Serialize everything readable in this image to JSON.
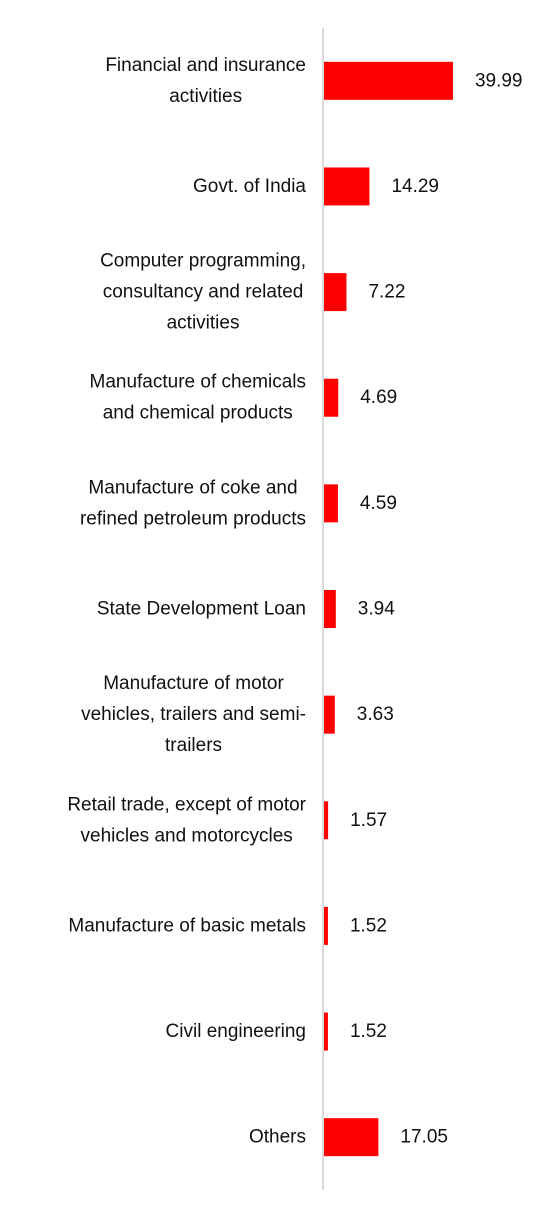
{
  "chart_data": {
    "type": "bar",
    "orientation": "horizontal",
    "title": "",
    "xlabel": "",
    "ylabel": "",
    "categories": [
      [
        "Financial and insurance",
        "activities"
      ],
      [
        "Govt. of India"
      ],
      [
        "Computer programming,",
        "consultancy and related",
        "activities"
      ],
      [
        "Manufacture of chemicals",
        "and chemical products"
      ],
      [
        "Manufacture of coke and",
        "refined petroleum products"
      ],
      [
        "State Development Loan"
      ],
      [
        "Manufacture of motor",
        "vehicles, trailers and semi-",
        "trailers"
      ],
      [
        "Retail trade, except of motor",
        "vehicles and motorcycles"
      ],
      [
        "Manufacture of basic metals"
      ],
      [
        "Civil engineering"
      ],
      [
        "Others"
      ]
    ],
    "values": [
      39.99,
      14.29,
      7.22,
      4.69,
      4.59,
      3.94,
      3.63,
      1.57,
      1.52,
      1.52,
      17.05
    ],
    "value_labels": [
      "39.99",
      "14.29",
      "7.22",
      "4.69",
      "4.59",
      "3.94",
      "3.63",
      "1.57",
      "1.52",
      "1.52",
      "17.05"
    ],
    "xlim": [
      0,
      40
    ],
    "bar_color": "#ff0000",
    "axis_color": "#d9d9d9",
    "grid": false,
    "legend": "none"
  }
}
